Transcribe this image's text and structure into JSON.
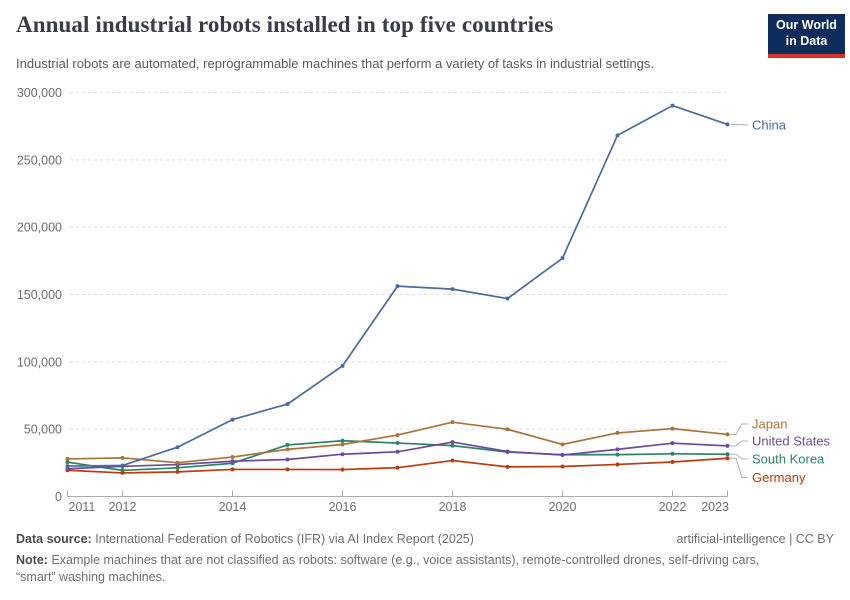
{
  "header": {
    "title": "Annual industrial robots installed in top five countries",
    "subtitle": "Industrial robots are automated, reprogrammable machines that perform a variety of tasks in industrial settings.",
    "logo": {
      "line1": "Our World",
      "line2": "in Data"
    }
  },
  "chart_data": {
    "type": "line",
    "title": "Annual industrial robots installed in top five countries",
    "x": [
      2011,
      2012,
      2013,
      2014,
      2015,
      2016,
      2017,
      2018,
      2019,
      2020,
      2021,
      2022,
      2023
    ],
    "x_tick_labels": [
      "2011",
      "2012",
      "2014",
      "2016",
      "2018",
      "2020",
      "2022",
      "2023"
    ],
    "x_tick_years": [
      2011,
      2012,
      2014,
      2016,
      2018,
      2020,
      2022,
      2023
    ],
    "ylim": [
      0,
      300000
    ],
    "y_ticks": [
      0,
      50000,
      100000,
      150000,
      200000,
      250000,
      300000
    ],
    "y_tick_labels": [
      "0",
      "50,000",
      "100,000",
      "150,000",
      "200,000",
      "250,000",
      "300,000"
    ],
    "grid": "horizontal-dashed",
    "legend_position": "end-of-line-labels",
    "series": [
      {
        "name": "Germany",
        "color": "#BB3B0E",
        "values": [
          19500,
          17500,
          18300,
          20100,
          20100,
          20000,
          21400,
          26700,
          22000,
          22300,
          23800,
          25600,
          28400
        ]
      },
      {
        "name": "South Korea",
        "color": "#2C8465",
        "values": [
          25500,
          19400,
          21300,
          24700,
          38300,
          41400,
          39700,
          37800,
          33000,
          31000,
          31100,
          31700,
          31400
        ]
      },
      {
        "name": "United States",
        "color": "#6D4A9C",
        "values": [
          20600,
          22400,
          23700,
          26200,
          27500,
          31400,
          33200,
          40400,
          33400,
          30800,
          35000,
          39600,
          37600
        ]
      },
      {
        "name": "Japan",
        "color": "#A8753A",
        "values": [
          27900,
          28700,
          25100,
          29300,
          35000,
          38600,
          45600,
          55200,
          49900,
          38700,
          47200,
          50400,
          46100
        ]
      },
      {
        "name": "China",
        "color": "#4C6A9C",
        "values": [
          22600,
          23000,
          36600,
          57100,
          68600,
          97000,
          156200,
          154000,
          147000,
          177000,
          268200,
          290300,
          276300
        ]
      }
    ]
  },
  "footer": {
    "data_source_label": "Data source:",
    "data_source_value": "International Federation of Robotics (IFR) via AI Index Report (2025)",
    "attribution": "artificial-intelligence | CC BY",
    "note_label": "Note:",
    "note_value": "Example machines that are not classified as robots: software (e.g., voice assistants), remote-controlled drones, self-driving cars, “smart” washing machines."
  },
  "colors": {
    "title": "#383e47",
    "subtitle": "#555b61",
    "axis_label": "#6e6e6e",
    "grid": "#dedede",
    "axis_line": "#adadad",
    "connector": "#b3b3b3",
    "logo_bg": "#0F2D5C",
    "logo_accent": "#DB3025",
    "footer_text": "#6f6f6f"
  }
}
